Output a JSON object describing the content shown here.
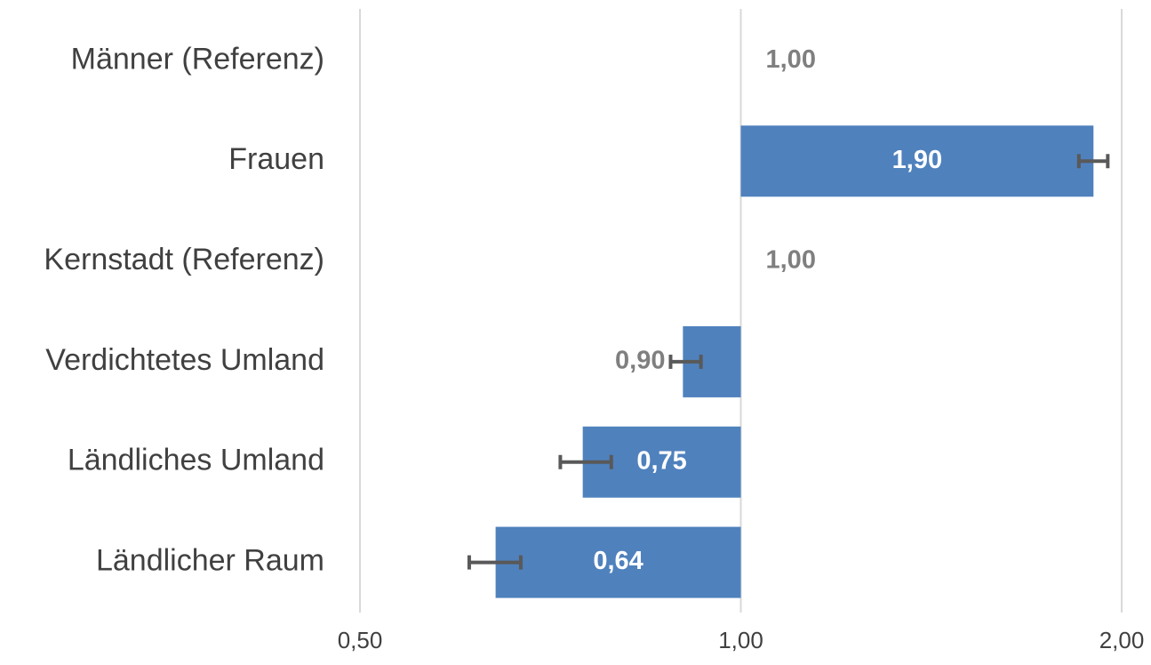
{
  "chart_data": {
    "type": "bar",
    "orientation": "horizontal",
    "categories": [
      "Männer (Referenz)",
      "Frauen",
      "Kernstadt (Referenz)",
      "Verdichtetes Umland",
      "Ländliches Umland",
      "Ländlicher Raum"
    ],
    "values": [
      1,
      1.9,
      1,
      0.9,
      0.75,
      0.64
    ],
    "value_labels": [
      "1,00",
      "1,90",
      "1,00",
      "0,90",
      "0,75",
      "0,64"
    ],
    "ci_low": [
      null,
      1.85,
      null,
      0.88,
      0.72,
      0.61
    ],
    "ci_high": [
      null,
      1.95,
      null,
      0.93,
      0.79,
      0.67
    ],
    "color": "#4f81bd",
    "xlim": [
      0.5,
      2
    ],
    "log_x": true,
    "base": 1,
    "xticks": [
      {
        "value": 0.5,
        "label": "0,50"
      },
      {
        "value": 1,
        "label": "1,00"
      },
      {
        "value": 2,
        "label": "2,00"
      }
    ],
    "grid": true
  }
}
